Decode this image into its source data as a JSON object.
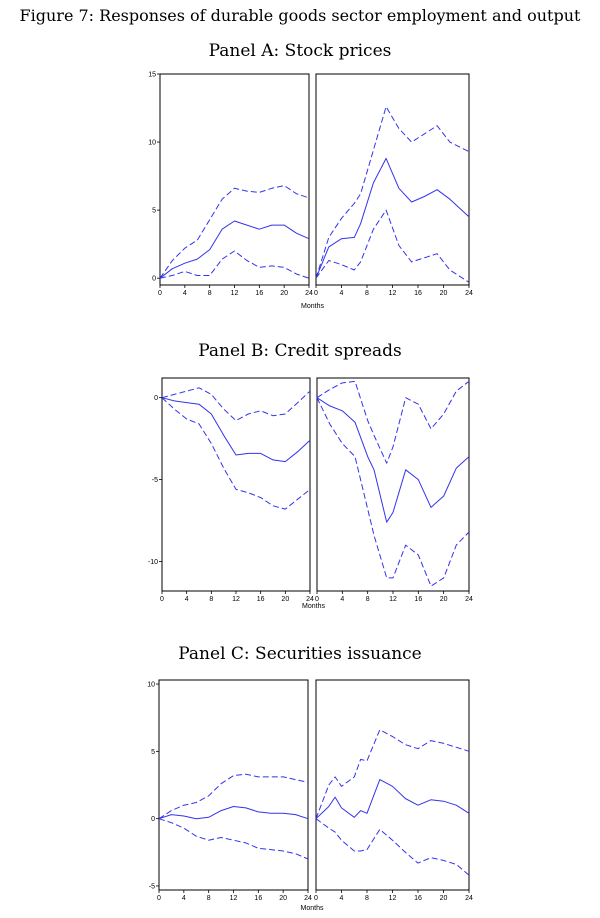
{
  "figure_title": "Figure 7: Responses of durable goods sector employment and output",
  "colors": {
    "line": "#3333ee",
    "frame": "#000000"
  },
  "chart_data": [
    {
      "type": "line",
      "title": "Panel A: Stock prices",
      "xlabel": "Months",
      "xticks": [
        0,
        4,
        8,
        12,
        16,
        20,
        24
      ],
      "yticks": [
        0,
        5,
        10,
        15
      ],
      "xlim": [
        0,
        24
      ],
      "ylim": [
        -0.5,
        15
      ],
      "subplots": [
        {
          "series": [
            {
              "style": "solid",
              "x": [
                0,
                2,
                4,
                6,
                8,
                10,
                12,
                14,
                16,
                18,
                20,
                22,
                24
              ],
              "y": [
                0,
                0.7,
                1.1,
                1.4,
                2.1,
                3.6,
                4.2,
                3.9,
                3.6,
                3.9,
                3.9,
                3.3,
                2.9
              ]
            },
            {
              "style": "dashed",
              "x": [
                0,
                2,
                4,
                6,
                8,
                10,
                12,
                14,
                16,
                18,
                20,
                22,
                24
              ],
              "y": [
                0,
                1.3,
                2.2,
                2.8,
                4.3,
                5.8,
                6.6,
                6.4,
                6.3,
                6.6,
                6.8,
                6.2,
                5.9
              ]
            },
            {
              "style": "dashed",
              "x": [
                0,
                2,
                4,
                6,
                8,
                10,
                12,
                14,
                16,
                18,
                20,
                22,
                24
              ],
              "y": [
                0,
                0.2,
                0.5,
                0.2,
                0.2,
                1.4,
                2.0,
                1.3,
                0.8,
                0.9,
                0.8,
                0.3,
                0.0
              ]
            }
          ]
        },
        {
          "series": [
            {
              "style": "solid",
              "x": [
                0,
                2,
                4,
                6,
                7,
                9,
                11,
                13,
                15,
                17,
                19,
                21,
                24
              ],
              "y": [
                0,
                2.3,
                2.9,
                3.0,
                4.0,
                7.0,
                8.8,
                6.6,
                5.6,
                6.0,
                6.5,
                5.8,
                4.5
              ]
            },
            {
              "style": "dashed",
              "x": [
                0,
                2,
                4,
                6,
                7,
                9,
                11,
                13,
                15,
                17,
                19,
                21,
                24
              ],
              "y": [
                0,
                3.0,
                4.4,
                5.5,
                6.2,
                9.4,
                12.6,
                11.0,
                10.0,
                10.6,
                11.2,
                10.0,
                9.3
              ]
            },
            {
              "style": "dashed",
              "x": [
                0,
                2,
                4,
                6,
                7,
                9,
                11,
                13,
                15,
                17,
                19,
                21,
                24
              ],
              "y": [
                0,
                1.3,
                1.0,
                0.6,
                1.2,
                3.6,
                5.0,
                2.4,
                1.2,
                1.5,
                1.8,
                0.6,
                -0.3
              ]
            }
          ]
        }
      ]
    },
    {
      "type": "line",
      "title": "Panel B: Credit spreads",
      "xlabel": "Months",
      "xticks": [
        0,
        4,
        8,
        12,
        16,
        20,
        24
      ],
      "yticks": [
        0,
        -5,
        -10
      ],
      "xlim": [
        0,
        24
      ],
      "ylim": [
        -11.8,
        1.2
      ],
      "subplots": [
        {
          "series": [
            {
              "style": "solid",
              "x": [
                0,
                2,
                4,
                6,
                8,
                10,
                12,
                14,
                16,
                18,
                20,
                22,
                24
              ],
              "y": [
                0,
                -0.2,
                -0.3,
                -0.4,
                -1.0,
                -2.3,
                -3.5,
                -3.4,
                -3.4,
                -3.8,
                -3.9,
                -3.3,
                -2.6
              ]
            },
            {
              "style": "dashed",
              "x": [
                0,
                2,
                4,
                6,
                8,
                10,
                12,
                14,
                16,
                18,
                20,
                22,
                24
              ],
              "y": [
                0,
                0.2,
                0.4,
                0.6,
                0.2,
                -0.7,
                -1.4,
                -1.0,
                -0.8,
                -1.1,
                -1.0,
                -0.3,
                0.4
              ]
            },
            {
              "style": "dashed",
              "x": [
                0,
                2,
                4,
                6,
                8,
                10,
                12,
                14,
                16,
                18,
                20,
                22,
                24
              ],
              "y": [
                0,
                -0.7,
                -1.3,
                -1.6,
                -2.8,
                -4.3,
                -5.6,
                -5.8,
                -6.1,
                -6.6,
                -6.8,
                -6.2,
                -5.6
              ]
            }
          ]
        },
        {
          "series": [
            {
              "style": "solid",
              "x": [
                0,
                2,
                4,
                6,
                8,
                9,
                11,
                12,
                14,
                16,
                18,
                20,
                22,
                24
              ],
              "y": [
                0,
                -0.5,
                -0.8,
                -1.5,
                -3.6,
                -4.4,
                -7.6,
                -7.0,
                -4.4,
                -5.0,
                -6.7,
                -6.0,
                -4.3,
                -3.6
              ]
            },
            {
              "style": "dashed",
              "x": [
                0,
                2,
                4,
                6,
                8,
                9,
                11,
                12,
                14,
                16,
                18,
                20,
                22,
                24
              ],
              "y": [
                0,
                0.5,
                0.9,
                1.0,
                -1.4,
                -2.3,
                -4.0,
                -3.0,
                0.0,
                -0.4,
                -1.9,
                -1.0,
                0.4,
                1.0
              ]
            },
            {
              "style": "dashed",
              "x": [
                0,
                2,
                4,
                6,
                8,
                9,
                11,
                12,
                14,
                16,
                18,
                20,
                22,
                24
              ],
              "y": [
                0,
                -1.6,
                -2.8,
                -3.6,
                -6.8,
                -8.4,
                -11.0,
                -11.0,
                -9.0,
                -9.6,
                -11.5,
                -11.0,
                -9.0,
                -8.2
              ]
            }
          ]
        }
      ]
    },
    {
      "type": "line",
      "title": "Panel C: Securities issuance",
      "xlabel": "Months",
      "xticks": [
        0,
        4,
        8,
        12,
        16,
        20,
        24
      ],
      "yticks": [
        -5,
        0,
        5,
        10
      ],
      "xlim": [
        0,
        24
      ],
      "ylim": [
        -5.3,
        10.3
      ],
      "subplots": [
        {
          "series": [
            {
              "style": "solid",
              "x": [
                0,
                2,
                4,
                6,
                8,
                10,
                12,
                14,
                16,
                18,
                20,
                22,
                24
              ],
              "y": [
                0,
                0.3,
                0.2,
                0.0,
                0.1,
                0.6,
                0.9,
                0.8,
                0.5,
                0.4,
                0.4,
                0.3,
                0.0
              ]
            },
            {
              "style": "dashed",
              "x": [
                0,
                2,
                4,
                6,
                8,
                10,
                12,
                14,
                16,
                18,
                20,
                22,
                24
              ],
              "y": [
                0,
                0.6,
                1.0,
                1.2,
                1.7,
                2.6,
                3.2,
                3.3,
                3.1,
                3.1,
                3.1,
                2.9,
                2.7
              ]
            },
            {
              "style": "dashed",
              "x": [
                0,
                2,
                4,
                6,
                8,
                10,
                12,
                14,
                16,
                18,
                20,
                22,
                24
              ],
              "y": [
                0,
                -0.3,
                -0.7,
                -1.3,
                -1.6,
                -1.4,
                -1.6,
                -1.8,
                -2.2,
                -2.3,
                -2.4,
                -2.6,
                -3.0
              ]
            }
          ]
        },
        {
          "series": [
            {
              "style": "solid",
              "x": [
                0,
                2,
                3,
                4,
                6,
                7,
                8,
                10,
                12,
                14,
                16,
                18,
                20,
                22,
                24
              ],
              "y": [
                0,
                0.9,
                1.6,
                0.8,
                0.1,
                0.6,
                0.4,
                2.9,
                2.4,
                1.5,
                1.0,
                1.4,
                1.3,
                1.0,
                0.4
              ]
            },
            {
              "style": "dashed",
              "x": [
                0,
                2,
                3,
                4,
                6,
                7,
                8,
                10,
                12,
                14,
                16,
                18,
                20,
                22,
                24
              ],
              "y": [
                0,
                2.5,
                3.1,
                2.4,
                3.1,
                4.4,
                4.3,
                6.6,
                6.1,
                5.5,
                5.2,
                5.8,
                5.6,
                5.3,
                5.0
              ]
            },
            {
              "style": "dashed",
              "x": [
                0,
                2,
                3,
                4,
                6,
                7,
                8,
                10,
                12,
                14,
                16,
                18,
                20,
                22,
                24
              ],
              "y": [
                0,
                -0.7,
                -1.0,
                -1.6,
                -2.4,
                -2.4,
                -2.3,
                -0.8,
                -1.6,
                -2.5,
                -3.3,
                -2.9,
                -3.1,
                -3.4,
                -4.2
              ]
            }
          ]
        }
      ]
    }
  ]
}
